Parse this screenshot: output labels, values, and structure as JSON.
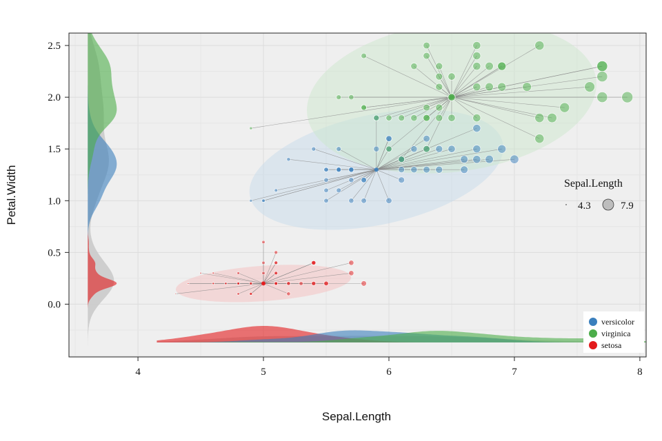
{
  "chart_data": {
    "type": "scatter",
    "xlabel": "Sepal.Length",
    "ylabel": "Petal.Width",
    "xlim": [
      3.45,
      8.05
    ],
    "ylim": [
      -0.51,
      2.62
    ],
    "x_ticks": [
      4,
      5,
      6,
      7,
      8
    ],
    "y_ticks": [
      0.0,
      0.5,
      1.0,
      1.5,
      2.0,
      2.5
    ],
    "x_tick_labels": [
      "4",
      "5",
      "6",
      "7",
      "8"
    ],
    "y_tick_labels": [
      "0.0",
      "0.5",
      "1.0",
      "1.5",
      "2.0",
      "2.5"
    ],
    "grid": true,
    "background": "#efefef",
    "size_legend": {
      "title": "Sepal.Length",
      "min_label": "4.3",
      "max_label": "7.9",
      "min": 4.3,
      "max": 7.9
    },
    "legend": {
      "placement": "bottom-right",
      "entries": [
        {
          "label": "versicolor",
          "color": "#3a7fbd"
        },
        {
          "label": "virginica",
          "color": "#4cad4a"
        },
        {
          "label": "setosa",
          "color": "#e31a1c"
        }
      ]
    },
    "series": [
      {
        "label": "setosa",
        "color": "#e31a1c",
        "centroid": [
          5.0,
          0.2
        ],
        "ellipse": {
          "cx": 5.0,
          "cy": 0.2,
          "rx": 0.7,
          "ry": 0.09,
          "angle_deg": 4
        },
        "points": [
          [
            5.1,
            0.2
          ],
          [
            4.9,
            0.2
          ],
          [
            4.7,
            0.2
          ],
          [
            4.6,
            0.2
          ],
          [
            5.0,
            0.2
          ],
          [
            5.4,
            0.4
          ],
          [
            4.6,
            0.3
          ],
          [
            5.0,
            0.2
          ],
          [
            4.4,
            0.2
          ],
          [
            4.9,
            0.1
          ],
          [
            5.4,
            0.2
          ],
          [
            4.8,
            0.2
          ],
          [
            4.8,
            0.1
          ],
          [
            4.3,
            0.1
          ],
          [
            5.8,
            0.2
          ],
          [
            5.7,
            0.4
          ],
          [
            5.4,
            0.4
          ],
          [
            5.1,
            0.3
          ],
          [
            5.7,
            0.3
          ],
          [
            5.1,
            0.3
          ],
          [
            5.4,
            0.2
          ],
          [
            5.1,
            0.4
          ],
          [
            4.6,
            0.2
          ],
          [
            5.1,
            0.5
          ],
          [
            4.8,
            0.2
          ],
          [
            5.0,
            0.2
          ],
          [
            5.0,
            0.4
          ],
          [
            5.2,
            0.2
          ],
          [
            5.2,
            0.2
          ],
          [
            4.7,
            0.2
          ],
          [
            4.8,
            0.2
          ],
          [
            5.4,
            0.4
          ],
          [
            5.2,
            0.1
          ],
          [
            5.5,
            0.2
          ],
          [
            4.9,
            0.2
          ],
          [
            5.0,
            0.2
          ],
          [
            5.5,
            0.2
          ],
          [
            4.9,
            0.1
          ],
          [
            4.4,
            0.2
          ],
          [
            5.1,
            0.2
          ],
          [
            5.0,
            0.3
          ],
          [
            4.5,
            0.3
          ],
          [
            4.4,
            0.2
          ],
          [
            5.0,
            0.6
          ],
          [
            5.1,
            0.4
          ],
          [
            4.8,
            0.3
          ],
          [
            5.1,
            0.2
          ],
          [
            4.6,
            0.2
          ],
          [
            5.3,
            0.2
          ],
          [
            5.0,
            0.2
          ]
        ]
      },
      {
        "label": "versicolor",
        "color": "#3a7fbd",
        "centroid": [
          5.9,
          1.3
        ],
        "ellipse": {
          "cx": 5.9,
          "cy": 1.3,
          "rx": 1.03,
          "ry": 0.28,
          "angle_deg": 12
        },
        "points": [
          [
            7.0,
            1.4
          ],
          [
            6.4,
            1.5
          ],
          [
            6.9,
            1.5
          ],
          [
            5.5,
            1.3
          ],
          [
            6.5,
            1.5
          ],
          [
            5.7,
            1.3
          ],
          [
            6.3,
            1.6
          ],
          [
            4.9,
            1.0
          ],
          [
            6.6,
            1.3
          ],
          [
            5.2,
            1.4
          ],
          [
            5.0,
            1.0
          ],
          [
            5.9,
            1.5
          ],
          [
            6.0,
            1.0
          ],
          [
            6.1,
            1.4
          ],
          [
            5.6,
            1.3
          ],
          [
            6.7,
            1.4
          ],
          [
            5.6,
            1.5
          ],
          [
            5.8,
            1.0
          ],
          [
            6.2,
            1.5
          ],
          [
            5.6,
            1.1
          ],
          [
            5.9,
            1.8
          ],
          [
            6.1,
            1.3
          ],
          [
            6.3,
            1.5
          ],
          [
            6.1,
            1.2
          ],
          [
            6.4,
            1.3
          ],
          [
            6.6,
            1.4
          ],
          [
            6.8,
            1.4
          ],
          [
            6.7,
            1.7
          ],
          [
            6.0,
            1.5
          ],
          [
            5.7,
            1.0
          ],
          [
            5.5,
            1.1
          ],
          [
            5.5,
            1.0
          ],
          [
            5.8,
            1.2
          ],
          [
            6.0,
            1.6
          ],
          [
            5.4,
            1.5
          ],
          [
            6.0,
            1.6
          ],
          [
            6.7,
            1.5
          ],
          [
            6.3,
            1.3
          ],
          [
            5.6,
            1.3
          ],
          [
            5.5,
            1.3
          ],
          [
            5.5,
            1.2
          ],
          [
            6.1,
            1.4
          ],
          [
            5.8,
            1.2
          ],
          [
            5.0,
            1.0
          ],
          [
            5.6,
            1.3
          ],
          [
            5.7,
            1.2
          ],
          [
            5.7,
            1.3
          ],
          [
            6.2,
            1.3
          ],
          [
            5.1,
            1.1
          ],
          [
            5.7,
            1.3
          ]
        ]
      },
      {
        "label": "virginica",
        "color": "#4cad4a",
        "centroid": [
          6.5,
          2.0
        ],
        "ellipse": {
          "cx": 6.5,
          "cy": 2.0,
          "rx": 1.16,
          "ry": 0.38,
          "angle_deg": 7
        },
        "points": [
          [
            6.3,
            2.5
          ],
          [
            5.8,
            1.9
          ],
          [
            7.1,
            2.1
          ],
          [
            6.3,
            1.8
          ],
          [
            6.5,
            2.2
          ],
          [
            7.6,
            2.1
          ],
          [
            4.9,
            1.7
          ],
          [
            7.3,
            1.8
          ],
          [
            6.7,
            1.8
          ],
          [
            7.2,
            2.5
          ],
          [
            6.5,
            2.0
          ],
          [
            6.4,
            1.9
          ],
          [
            6.8,
            2.1
          ],
          [
            5.7,
            2.0
          ],
          [
            5.8,
            2.4
          ],
          [
            6.4,
            2.3
          ],
          [
            6.5,
            1.8
          ],
          [
            7.7,
            2.2
          ],
          [
            7.7,
            2.3
          ],
          [
            6.0,
            1.5
          ],
          [
            6.9,
            2.3
          ],
          [
            5.6,
            2.0
          ],
          [
            7.7,
            2.0
          ],
          [
            6.3,
            1.8
          ],
          [
            6.7,
            2.1
          ],
          [
            7.2,
            1.8
          ],
          [
            6.2,
            1.8
          ],
          [
            6.1,
            1.8
          ],
          [
            6.4,
            2.1
          ],
          [
            7.2,
            1.6
          ],
          [
            7.4,
            1.9
          ],
          [
            7.9,
            2.0
          ],
          [
            6.4,
            2.2
          ],
          [
            6.3,
            1.5
          ],
          [
            6.1,
            1.4
          ],
          [
            7.7,
            2.3
          ],
          [
            6.3,
            2.4
          ],
          [
            6.4,
            1.8
          ],
          [
            6.0,
            1.8
          ],
          [
            6.9,
            2.1
          ],
          [
            6.7,
            2.4
          ],
          [
            6.9,
            2.3
          ],
          [
            5.8,
            1.9
          ],
          [
            6.8,
            2.3
          ],
          [
            6.7,
            2.5
          ],
          [
            6.7,
            2.3
          ],
          [
            6.3,
            1.9
          ],
          [
            6.5,
            2.0
          ],
          [
            6.2,
            2.3
          ],
          [
            5.9,
            1.8
          ]
        ]
      }
    ]
  }
}
